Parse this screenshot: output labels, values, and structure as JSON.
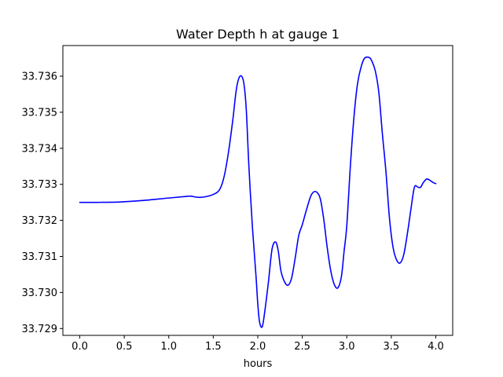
{
  "chart_data": {
    "type": "line",
    "title": "Water Depth h at gauge 1",
    "xlabel": "hours",
    "ylabel": "",
    "xlim": [
      -0.19,
      4.19
    ],
    "ylim": [
      33.72881,
      33.73685
    ],
    "x_ticks": [
      0.0,
      0.5,
      1.0,
      1.5,
      2.0,
      2.5,
      3.0,
      3.5,
      4.0
    ],
    "x_tick_labels": [
      "0.0",
      "0.5",
      "1.0",
      "1.5",
      "2.0",
      "2.5",
      "3.0",
      "3.5",
      "4.0"
    ],
    "y_ticks": [
      33.729,
      33.73,
      33.731,
      33.732,
      33.733,
      33.734,
      33.735,
      33.736
    ],
    "y_tick_labels": [
      "33.729",
      "33.730",
      "33.731",
      "33.732",
      "33.733",
      "33.734",
      "33.735",
      "33.736"
    ],
    "grid": false,
    "legend": "none",
    "series": [
      {
        "color": "#0000ff",
        "x": [
          0.0,
          0.2,
          0.45,
          0.7,
          1.0,
          1.22,
          1.25,
          1.33,
          1.4,
          1.5,
          1.57,
          1.62,
          1.67,
          1.72,
          1.76,
          1.8,
          1.84,
          1.87,
          1.9,
          1.94,
          1.98,
          2.0,
          2.02,
          2.05,
          2.08,
          2.12,
          2.16,
          2.2,
          2.23,
          2.26,
          2.3,
          2.34,
          2.38,
          2.42,
          2.46,
          2.5,
          2.55,
          2.6,
          2.65,
          2.7,
          2.74,
          2.78,
          2.82,
          2.86,
          2.9,
          2.94,
          2.97,
          3.0,
          3.04,
          3.08,
          3.12,
          3.16,
          3.2,
          3.25,
          3.28,
          3.32,
          3.36,
          3.4,
          3.44,
          3.48,
          3.52,
          3.56,
          3.6,
          3.64,
          3.68,
          3.72,
          3.76,
          3.8,
          3.83,
          3.86,
          3.9,
          3.94,
          3.97,
          4.0
        ],
        "y": [
          33.7325,
          33.7325,
          33.73251,
          33.73255,
          33.73262,
          33.73267,
          33.73267,
          33.73264,
          33.73265,
          33.73272,
          33.73285,
          33.7332,
          33.73388,
          33.7348,
          33.73565,
          33.736,
          33.73585,
          33.7351,
          33.7335,
          33.7318,
          33.73045,
          33.72968,
          33.72918,
          33.72905,
          33.7295,
          33.7303,
          33.7312,
          33.7314,
          33.73115,
          33.7306,
          33.7303,
          33.7302,
          33.7304,
          33.73095,
          33.73158,
          33.73188,
          33.73232,
          33.7327,
          33.7328,
          33.73262,
          33.73205,
          33.73125,
          33.7306,
          33.73022,
          33.73013,
          33.73045,
          33.73115,
          33.73185,
          33.7335,
          33.73485,
          33.73578,
          33.73625,
          33.7365,
          33.73652,
          33.73643,
          33.73615,
          33.73555,
          33.7344,
          33.73335,
          33.73205,
          33.73125,
          33.7309,
          33.73082,
          33.73105,
          33.73162,
          33.7323,
          33.73292,
          33.73292,
          33.73292,
          33.73305,
          33.73315,
          33.7331,
          33.73305,
          33.73302
        ]
      }
    ]
  }
}
